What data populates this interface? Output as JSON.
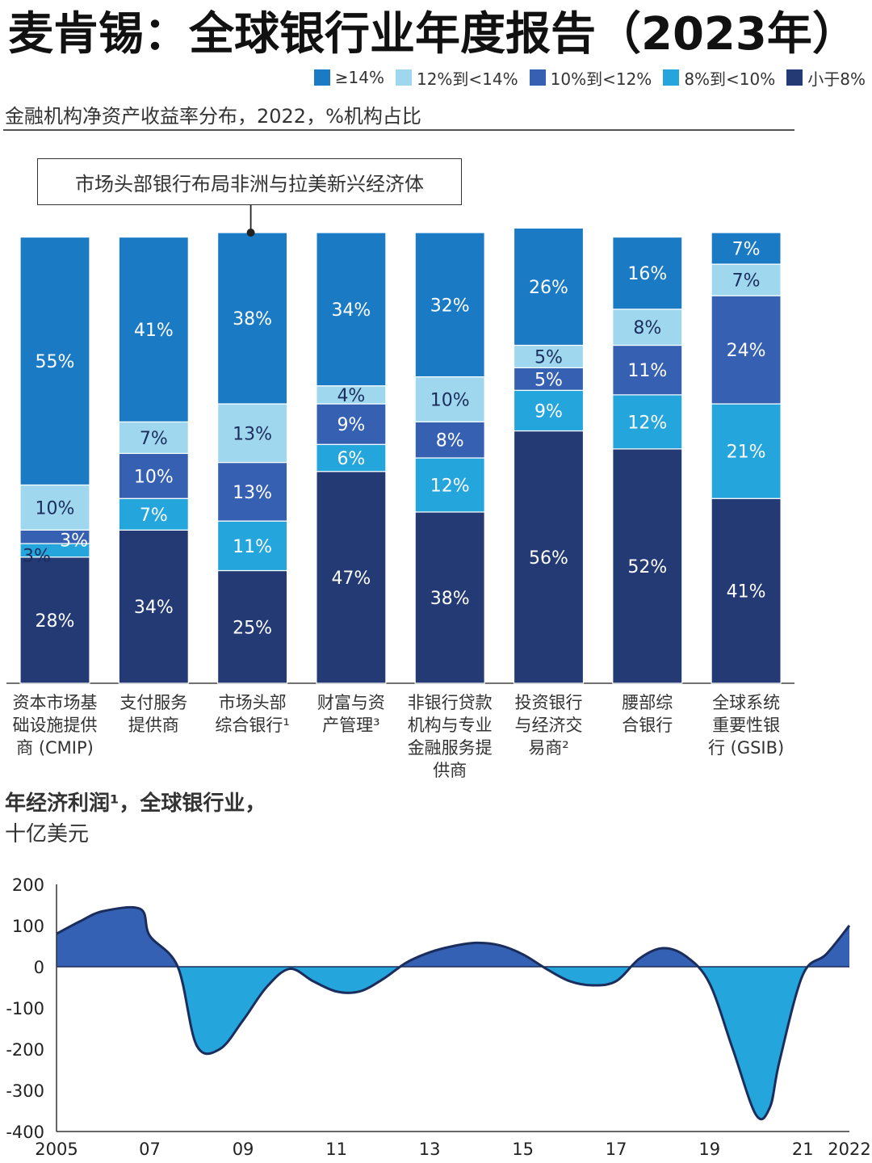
{
  "title": "麦肯锡：全球银行业年度报告（2023年）",
  "colors": {
    "ge14": "#1a7bc4",
    "r12_14": "#9fd8ee",
    "r10_12": "#3660b2",
    "r8_10": "#24a5dc",
    "lt8": "#233a74",
    "positive": "#3461b4",
    "negative": "#24a5dc",
    "curve": "#1b2d5c"
  },
  "legend": [
    {
      "key": "ge14",
      "label": "≥14%"
    },
    {
      "key": "r12_14",
      "label": "12%到<14%"
    },
    {
      "key": "r10_12",
      "label": "10%到<12%"
    },
    {
      "key": "r8_10",
      "label": "8%到<10%"
    },
    {
      "key": "lt8",
      "label": "小于8%"
    }
  ],
  "chart_data": [
    {
      "type": "bar",
      "stacked": true,
      "title": "金融机构净资产收益率分布，2022，%机构占比",
      "callout": "市场头部银行布局非洲与拉美新兴经济体",
      "callout_target": "市场头部综合银行",
      "categories": [
        "资本市场基\n础设施提供\n商 (CMIP)",
        "支付服务\n提供商",
        "市场头部\n综合银行¹",
        "财富与资\n产管理³",
        "非银行贷款\n机构与专业\n金融服务提\n供商",
        "投资银行\n与经济交\n易商²",
        "腰部综\n合银行",
        "全球系统\n重要性银\n行 (GSIB)"
      ],
      "series": [
        {
          "name": "小于8%",
          "key": "lt8",
          "values": [
            28,
            34,
            25,
            47,
            38,
            56,
            52,
            41
          ]
        },
        {
          "name": "8%到<10%",
          "key": "r8_10",
          "values": [
            3,
            7,
            11,
            6,
            12,
            9,
            12,
            21
          ]
        },
        {
          "name": "10%到<12%",
          "key": "r10_12",
          "values": [
            3,
            10,
            13,
            9,
            8,
            5,
            11,
            24
          ]
        },
        {
          "name": "12%到<14%",
          "key": "r12_14",
          "values": [
            10,
            7,
            13,
            4,
            10,
            5,
            8,
            7
          ]
        },
        {
          "name": "≥14%",
          "key": "ge14",
          "values": [
            55,
            41,
            38,
            34,
            32,
            26,
            16,
            7
          ]
        }
      ],
      "ylim": [
        0,
        100
      ]
    },
    {
      "type": "area",
      "title": "年经济利润¹，全球银行业，",
      "unit": "十亿美元",
      "x": [
        2005,
        2005.5,
        2006,
        2006.8,
        2007,
        2007.6,
        2008,
        2008.5,
        2009,
        2009.5,
        2010,
        2010.5,
        2011,
        2011.5,
        2012,
        2012.5,
        2013,
        2013.5,
        2014,
        2014.5,
        2015,
        2015.5,
        2016,
        2016.5,
        2017,
        2017.5,
        2018,
        2018.5,
        2019,
        2019.5,
        2020,
        2020.3,
        2020.5,
        2021,
        2021.5,
        2022
      ],
      "y": [
        80,
        110,
        135,
        140,
        75,
        0,
        -190,
        -200,
        -130,
        -50,
        -5,
        -35,
        -60,
        -60,
        -30,
        10,
        35,
        50,
        58,
        52,
        30,
        -5,
        -35,
        -45,
        -35,
        20,
        45,
        25,
        -40,
        -200,
        -360,
        -340,
        -230,
        -20,
        30,
        100
      ],
      "xticks": [
        2005,
        2007,
        2009,
        2011,
        2013,
        2015,
        2017,
        2019,
        2021,
        2022
      ],
      "xtick_labels": [
        "2005",
        "07",
        "09",
        "11",
        "13",
        "15",
        "17",
        "19",
        "21",
        "2022"
      ],
      "yticks": [
        200,
        100,
        0,
        -100,
        -200,
        -300,
        -400
      ],
      "ylim": [
        -400,
        200
      ]
    }
  ]
}
